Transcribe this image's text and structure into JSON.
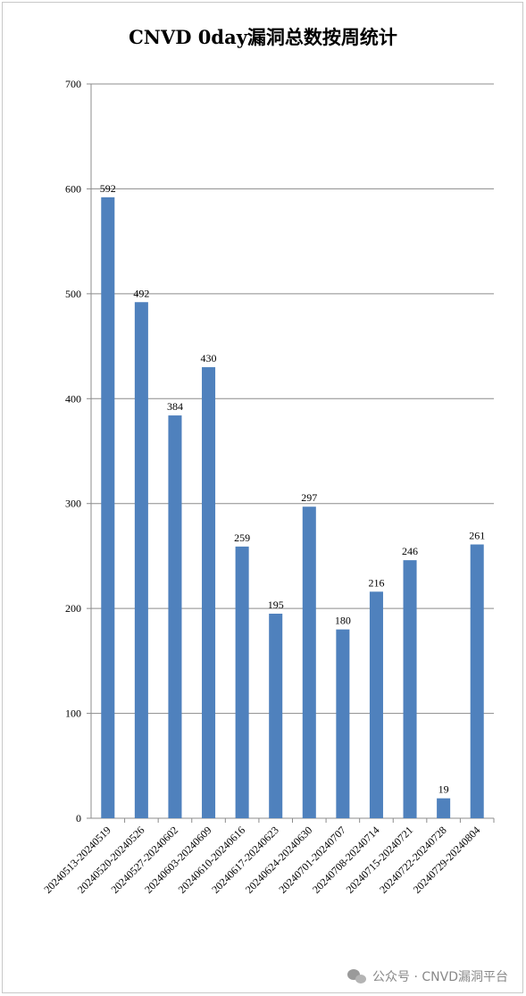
{
  "chart_data": {
    "type": "bar",
    "title": "CNVD 0day漏洞总数按周统计",
    "categories": [
      "20240513-20240519",
      "20240520-20240526",
      "20240527-20240602",
      "20240603-20240609",
      "20240610-20240616",
      "20240617-20240623",
      "20240624-20240630",
      "20240701-20240707",
      "20240708-20240714",
      "20240715-20240721",
      "20240722-20240728",
      "20240729-20240804"
    ],
    "values": [
      592,
      492,
      384,
      430,
      259,
      195,
      297,
      180,
      216,
      246,
      19,
      261
    ],
    "ylim": [
      0,
      700
    ],
    "yticks": [
      0,
      100,
      200,
      300,
      400,
      500,
      600,
      700
    ],
    "grid": true,
    "bar_color": "#4f81bd"
  },
  "watermark": {
    "text": "公众号 · CNVD漏洞平台",
    "icon": "wechat-icon"
  }
}
